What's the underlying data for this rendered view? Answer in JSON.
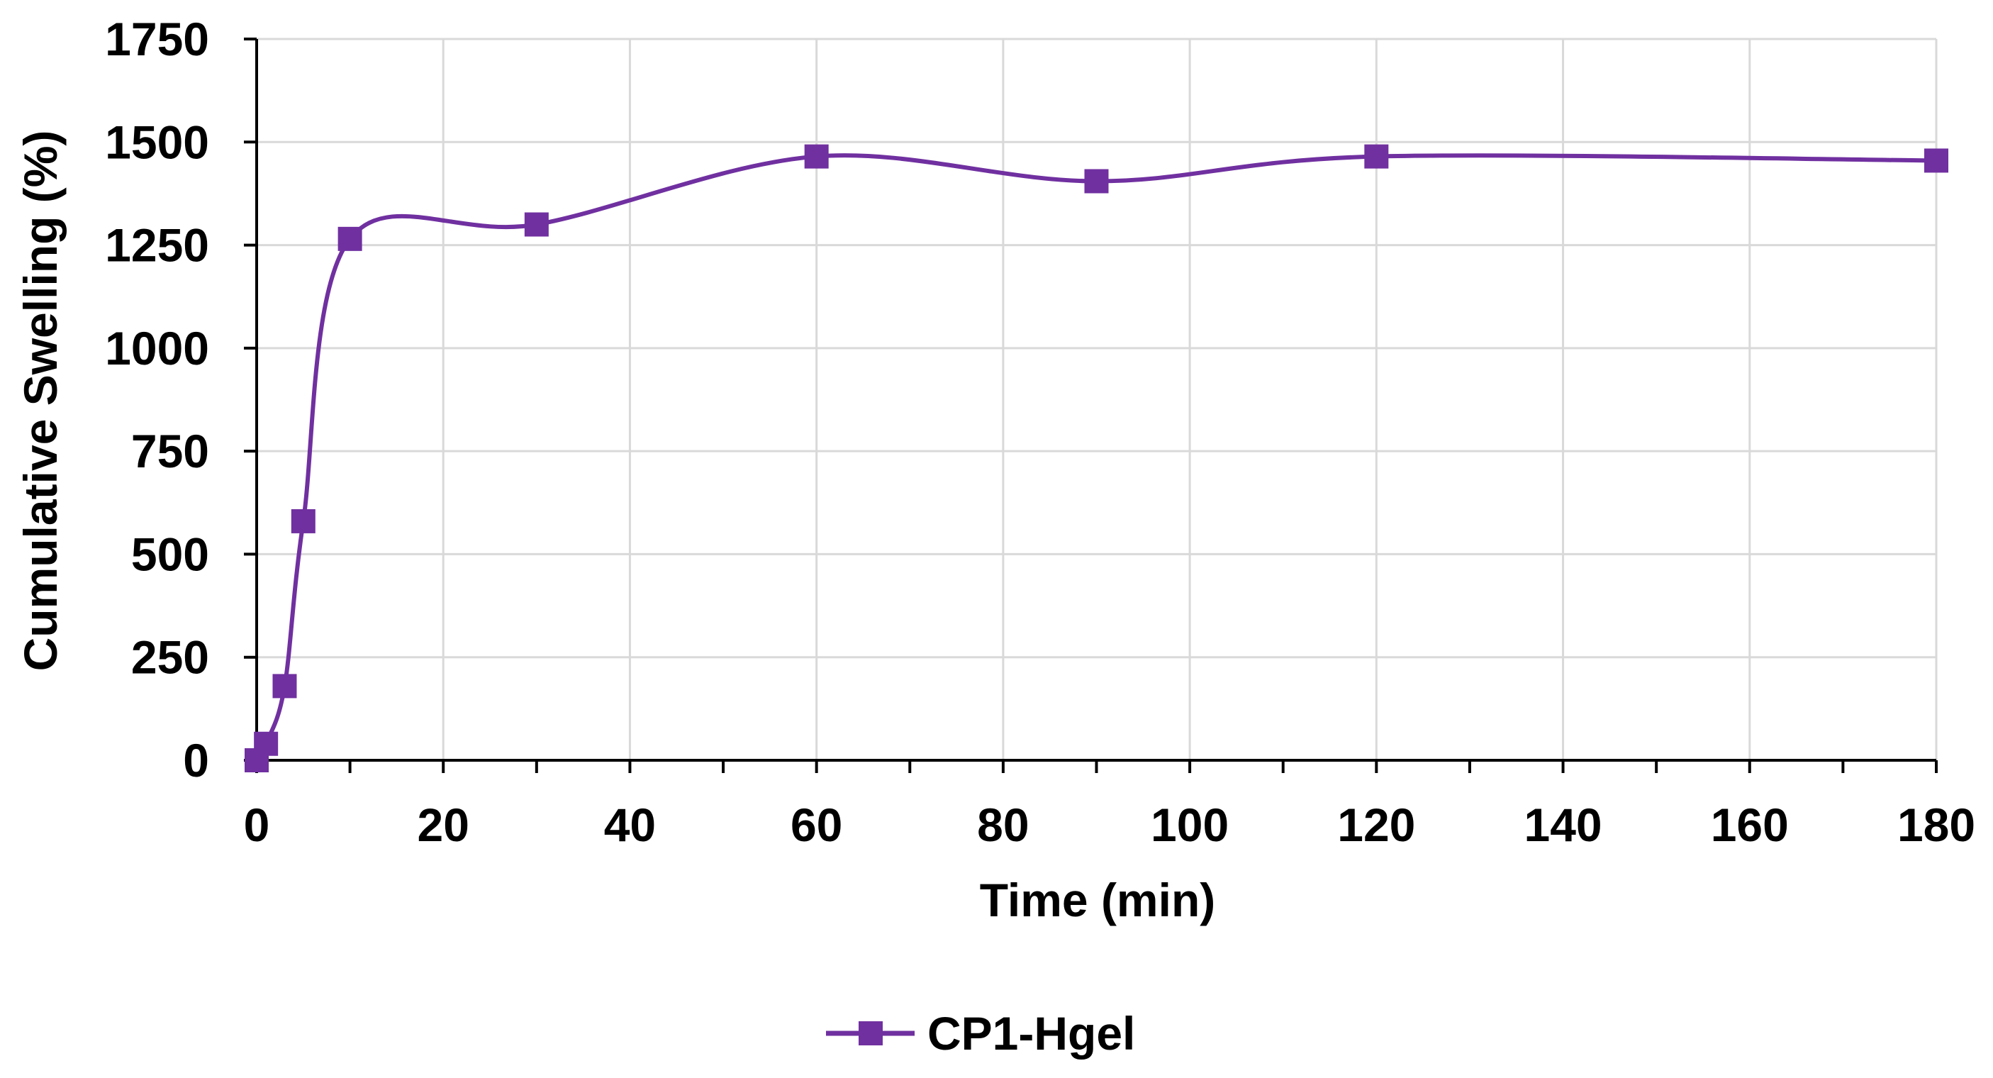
{
  "chart_data": {
    "type": "line",
    "smooth": true,
    "xlabel": "Time (min)",
    "ylabel": "Cumulative Swelling (%)",
    "xlim": [
      0,
      180
    ],
    "ylim": [
      0,
      1750
    ],
    "x_major_ticks": [
      0,
      20,
      40,
      60,
      80,
      100,
      120,
      140,
      160,
      180
    ],
    "x_minor_tick_step": 10,
    "y_ticks": [
      0,
      250,
      500,
      750,
      1000,
      1250,
      1500,
      1750
    ],
    "grid": true,
    "legend_position": "bottom-center",
    "series": [
      {
        "name": "CP1-Hgel",
        "color": "#7030a0",
        "marker": "square",
        "x": [
          0,
          1,
          3,
          5,
          10,
          30,
          60,
          90,
          120,
          180
        ],
        "y": [
          0,
          40,
          180,
          580,
          1265,
          1300,
          1465,
          1405,
          1465,
          1455
        ]
      }
    ]
  }
}
